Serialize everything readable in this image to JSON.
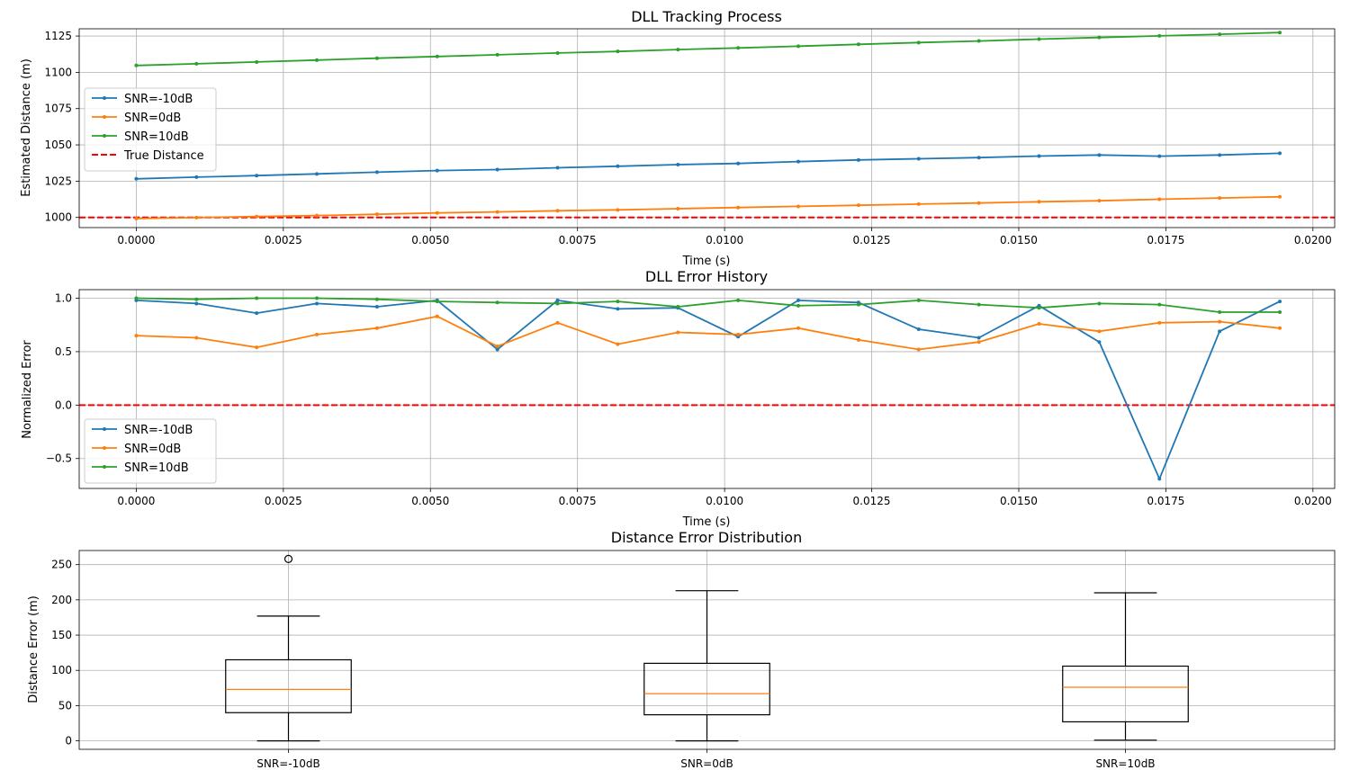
{
  "figure": {
    "background": "#ffffff"
  },
  "chart_data": [
    {
      "type": "line",
      "title": "DLL Tracking Process",
      "xlabel": "Time (s)",
      "ylabel": "Estimated Distance (m)",
      "xlim": [
        -0.00097,
        0.02037
      ],
      "ylim": [
        993,
        1130
      ],
      "xticks": [
        0,
        0.0025,
        0.005,
        0.0075,
        0.01,
        0.0125,
        0.015,
        0.0175,
        0.02
      ],
      "xtick_labels": [
        "0.0000",
        "0.0025",
        "0.0050",
        "0.0075",
        "0.0100",
        "0.0125",
        "0.0150",
        "0.0175",
        "0.0200"
      ],
      "yticks": [
        1000,
        1025,
        1050,
        1075,
        1100,
        1125
      ],
      "ytick_labels": [
        "1000",
        "1025",
        "1050",
        "1075",
        "1100",
        "1125"
      ],
      "grid": true,
      "legend": "upper-left",
      "x": [
        0,
        0.001023,
        0.002046,
        0.003069,
        0.004092,
        0.005115,
        0.006138,
        0.007161,
        0.008184,
        0.009207,
        0.01023,
        0.011253,
        0.012276,
        0.013299,
        0.014322,
        0.015345,
        0.016368,
        0.017391,
        0.018414,
        0.019437
      ],
      "series": [
        {
          "name": "SNR=-10dB",
          "color": "#1f77b4",
          "values": [
            1026.6,
            1027.8,
            1028.8,
            1030.0,
            1031.2,
            1032.3,
            1033.0,
            1034.2,
            1035.3,
            1036.4,
            1037.2,
            1038.5,
            1039.6,
            1040.4,
            1041.2,
            1042.3,
            1043.0,
            1042.2,
            1043.0,
            1044.2
          ]
        },
        {
          "name": "SNR=0dB",
          "color": "#ff7f0e",
          "values": [
            999.2,
            999.9,
            1000.6,
            1001.3,
            1002.2,
            1003.1,
            1003.8,
            1004.6,
            1005.2,
            1006.0,
            1006.8,
            1007.6,
            1008.4,
            1009.2,
            1009.9,
            1010.8,
            1011.5,
            1012.5,
            1013.4,
            1014.2
          ]
        },
        {
          "name": "SNR=10dB",
          "color": "#2ca02c",
          "values": [
            1104.7,
            1105.9,
            1107.1,
            1108.4,
            1109.7,
            1110.9,
            1112.1,
            1113.3,
            1114.4,
            1115.7,
            1116.8,
            1118.0,
            1119.3,
            1120.5,
            1121.6,
            1122.9,
            1124.0,
            1125.1,
            1126.2,
            1127.4
          ]
        }
      ],
      "reference_line": {
        "name": "True Distance",
        "value": 1000,
        "color": "#ff0000",
        "style": "dashed"
      }
    },
    {
      "type": "line",
      "title": "DLL Error History",
      "xlabel": "Time (s)",
      "ylabel": "Normalized Error",
      "xlim": [
        -0.00097,
        0.02037
      ],
      "ylim": [
        -0.78,
        1.08
      ],
      "xticks": [
        0,
        0.0025,
        0.005,
        0.0075,
        0.01,
        0.0125,
        0.015,
        0.0175,
        0.02
      ],
      "xtick_labels": [
        "0.0000",
        "0.0025",
        "0.0050",
        "0.0075",
        "0.0100",
        "0.0125",
        "0.0150",
        "0.0175",
        "0.0200"
      ],
      "yticks": [
        -0.5,
        0,
        0.5,
        1.0
      ],
      "ytick_labels": [
        "−0.5",
        "0.0",
        "0.5",
        "1.0"
      ],
      "grid": true,
      "legend": "lower-left",
      "x": [
        0,
        0.001023,
        0.002046,
        0.003069,
        0.004092,
        0.005115,
        0.006138,
        0.007161,
        0.008184,
        0.009207,
        0.01023,
        0.011253,
        0.012276,
        0.013299,
        0.014322,
        0.015345,
        0.016368,
        0.017391,
        0.018414,
        0.019437
      ],
      "series": [
        {
          "name": "SNR=-10dB",
          "color": "#1f77b4",
          "values": [
            0.98,
            0.95,
            0.86,
            0.95,
            0.92,
            0.98,
            0.52,
            0.98,
            0.9,
            0.91,
            0.64,
            0.98,
            0.96,
            0.71,
            0.63,
            0.93,
            0.59,
            -0.69,
            0.69,
            0.97
          ]
        },
        {
          "name": "SNR=0dB",
          "color": "#ff7f0e",
          "values": [
            0.65,
            0.63,
            0.54,
            0.66,
            0.72,
            0.83,
            0.55,
            0.77,
            0.57,
            0.68,
            0.66,
            0.72,
            0.61,
            0.52,
            0.59,
            0.76,
            0.69,
            0.77,
            0.78,
            0.72
          ]
        },
        {
          "name": "SNR=10dB",
          "color": "#2ca02c",
          "values": [
            1.0,
            0.99,
            1.0,
            1.0,
            0.99,
            0.97,
            0.96,
            0.95,
            0.97,
            0.92,
            0.98,
            0.93,
            0.94,
            0.98,
            0.94,
            0.91,
            0.95,
            0.94,
            0.87,
            0.87
          ]
        }
      ],
      "reference_line": {
        "value": 0,
        "color": "#ff0000",
        "style": "dashed"
      }
    },
    {
      "type": "box",
      "title": "Distance Error Distribution",
      "xlabel": "",
      "ylabel": "Distance Error (m)",
      "ylim": [
        -12,
        270
      ],
      "yticks": [
        0,
        50,
        100,
        150,
        200,
        250
      ],
      "ytick_labels": [
        "0",
        "50",
        "100",
        "150",
        "200",
        "250"
      ],
      "grid": true,
      "categories": [
        "SNR=-10dB",
        "SNR=0dB",
        "SNR=10dB"
      ],
      "boxes": [
        {
          "whisker_low": 0,
          "q1": 40,
          "median": 73,
          "q3": 115,
          "whisker_high": 177,
          "outliers": [
            258
          ]
        },
        {
          "whisker_low": 0,
          "q1": 37,
          "median": 67,
          "q3": 110,
          "whisker_high": 213,
          "outliers": []
        },
        {
          "whisker_low": 1,
          "q1": 27,
          "median": 76,
          "q3": 106,
          "whisker_high": 210,
          "outliers": []
        }
      ],
      "median_color": "#ff7f0e",
      "box_color": "#000000"
    }
  ]
}
